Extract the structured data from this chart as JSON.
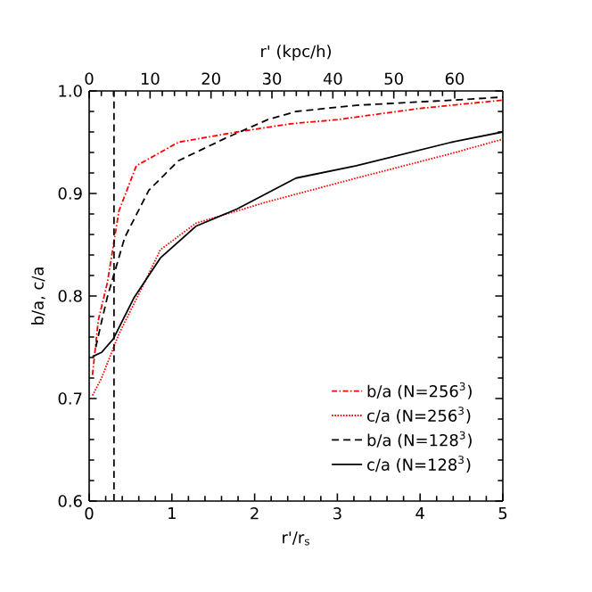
{
  "chart_data": {
    "type": "line",
    "xlabel": "r'/r$_{s}$",
    "ylabel": "b/a, c/a",
    "x2label": "r' (kpc/h)",
    "xlim": [
      0,
      5
    ],
    "xticks": [
      0,
      1,
      2,
      3,
      4,
      5
    ],
    "ylim": [
      0.6,
      1.0
    ],
    "yticks": [
      0.6,
      0.7,
      0.8,
      0.9,
      {
        "value": 1,
        "label": "1.0"
      }
    ],
    "x2lim": [
      0,
      67.9
    ],
    "x2ticks": [
      0,
      10,
      20,
      30,
      40,
      50,
      60
    ],
    "grid": false,
    "legend": "bottom right",
    "ref_lines": [
      {
        "axis": "x",
        "value": 0.3,
        "color": "#000000",
        "line_style": "dashed"
      }
    ],
    "series": [
      {
        "name": "b/a (N=256$^{3}$)",
        "color": "#ff0000",
        "line_style": "dashdot",
        "x": [
          0.04,
          0.11,
          0.22,
          0.36,
          0.57,
          1.08,
          1.79,
          2.44,
          3.0,
          4.0,
          5.0
        ],
        "values": [
          0.723,
          0.776,
          0.813,
          0.883,
          0.927,
          0.95,
          0.96,
          0.968,
          0.972,
          0.983,
          0.991
        ]
      },
      {
        "name": "c/a (N=256$^{3}$)",
        "color": "#ff0000",
        "line_style": "dotted",
        "x": [
          0.04,
          0.15,
          0.36,
          0.65,
          0.86,
          1.29,
          2.16,
          3.23,
          4.38,
          5.0
        ],
        "values": [
          0.703,
          0.72,
          0.763,
          0.81,
          0.845,
          0.871,
          0.892,
          0.915,
          0.939,
          0.953
        ]
      },
      {
        "name": "b/a (N=128$^{3}$)",
        "color": "#000000",
        "line_style": "dashed",
        "x": [
          0.08,
          0.15,
          0.22,
          0.43,
          0.72,
          1.08,
          1.65,
          2.16,
          2.5,
          3.23,
          4.38,
          5.0
        ],
        "values": [
          0.75,
          0.775,
          0.799,
          0.857,
          0.903,
          0.932,
          0.954,
          0.972,
          0.98,
          0.986,
          0.991,
          0.994
        ]
      },
      {
        "name": "c/a (N=128$^{3}$)",
        "color": "#000000",
        "line_style": "solid",
        "x": [
          0.04,
          0.15,
          0.29,
          0.54,
          0.86,
          1.29,
          1.79,
          2.5,
          3.23,
          4.38,
          5.0
        ],
        "values": [
          0.741,
          0.745,
          0.758,
          0.798,
          0.837,
          0.868,
          0.885,
          0.915,
          0.927,
          0.95,
          0.96
        ]
      }
    ]
  }
}
